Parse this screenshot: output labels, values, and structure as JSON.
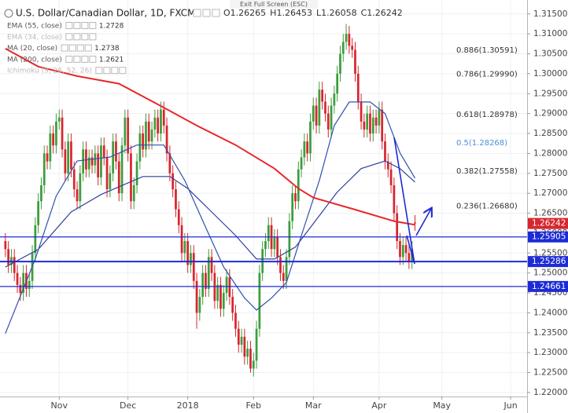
{
  "chart_data": {
    "type": "candlestick",
    "title": "U.S. Dollar/Canadian Dollar, 1D, FXCM",
    "banner": "Exit Full Screen (ESC)",
    "ohlc_labels": [
      "O",
      "H",
      "L",
      "C"
    ],
    "up_color": "#3d9d3d",
    "down_color": "#d7262e",
    "open": [
      1.258,
      1.256,
      1.252,
      1.254,
      1.25,
      1.247,
      1.245,
      1.25,
      1.246,
      1.248,
      1.255,
      1.262,
      1.268,
      1.272,
      1.28,
      1.278,
      1.285,
      1.282,
      1.288,
      1.289,
      1.281,
      1.275,
      1.283,
      1.276,
      1.271,
      1.268,
      1.275,
      1.281,
      1.276,
      1.279,
      1.277,
      1.28,
      1.274,
      1.282,
      1.279,
      1.271,
      1.275,
      1.283,
      1.278,
      1.27,
      1.282,
      1.289,
      1.28,
      1.268,
      1.272,
      1.278,
      1.285,
      1.281,
      1.288,
      1.283,
      1.286,
      1.289,
      1.285,
      1.291,
      1.287,
      1.28,
      1.275,
      1.271,
      1.266,
      1.262,
      1.255,
      1.258,
      1.252,
      1.255,
      1.248,
      1.24,
      1.244,
      1.25,
      1.246,
      1.254,
      1.25,
      1.243,
      1.247,
      1.241,
      1.245,
      1.249,
      1.244,
      1.24,
      1.236,
      1.232,
      1.234,
      1.229,
      1.231,
      1.226,
      1.228,
      1.236,
      1.25,
      1.256,
      1.258,
      1.262,
      1.256,
      1.259,
      1.254,
      1.25,
      1.248,
      1.254,
      1.263,
      1.27,
      1.268,
      1.276,
      1.279,
      1.283,
      1.28,
      1.288,
      1.292,
      1.287,
      1.296,
      1.293,
      1.29,
      1.286,
      1.292,
      1.295,
      1.3,
      1.305,
      1.308,
      1.31,
      1.307,
      1.306,
      1.3,
      1.293,
      1.288,
      1.286,
      1.29,
      1.285,
      1.289,
      1.287,
      1.291,
      1.283,
      1.278,
      1.276,
      1.272,
      1.265,
      1.258,
      1.254,
      1.257,
      1.255,
      1.253,
      1.26265
    ],
    "high": [
      1.26,
      1.258,
      1.256,
      1.256,
      1.252,
      1.249,
      1.252,
      1.252,
      1.25,
      1.257,
      1.264,
      1.27,
      1.274,
      1.282,
      1.282,
      1.287,
      1.287,
      1.29,
      1.291,
      1.291,
      1.283,
      1.285,
      1.285,
      1.278,
      1.273,
      1.277,
      1.283,
      1.283,
      1.281,
      1.281,
      1.282,
      1.282,
      1.284,
      1.284,
      1.281,
      1.277,
      1.285,
      1.285,
      1.28,
      1.284,
      1.291,
      1.291,
      1.282,
      1.274,
      1.28,
      1.287,
      1.287,
      1.29,
      1.29,
      1.288,
      1.291,
      1.291,
      1.293,
      1.293,
      1.289,
      1.282,
      1.277,
      1.273,
      1.268,
      1.264,
      1.26,
      1.26,
      1.257,
      1.257,
      1.25,
      1.246,
      1.252,
      1.252,
      1.256,
      1.256,
      1.252,
      1.249,
      1.249,
      1.247,
      1.251,
      1.251,
      1.246,
      1.242,
      1.238,
      1.236,
      1.236,
      1.233,
      1.233,
      1.23,
      1.238,
      1.252,
      1.258,
      1.26,
      1.264,
      1.264,
      1.261,
      1.261,
      1.256,
      1.252,
      1.256,
      1.265,
      1.272,
      1.272,
      1.278,
      1.281,
      1.285,
      1.285,
      1.29,
      1.294,
      1.294,
      1.298,
      1.298,
      1.295,
      1.292,
      1.294,
      1.297,
      1.302,
      1.307,
      1.31,
      1.3125,
      1.312,
      1.309,
      1.308,
      1.302,
      1.295,
      1.29,
      1.292,
      1.292,
      1.291,
      1.291,
      1.293,
      1.293,
      1.285,
      1.28,
      1.278,
      1.274,
      1.267,
      1.26,
      1.259,
      1.259,
      1.257,
      1.258,
      1.26453
    ],
    "low": [
      1.254,
      1.25,
      1.25,
      1.248,
      1.245,
      1.243,
      1.243,
      1.244,
      1.244,
      1.246,
      1.253,
      1.26,
      1.266,
      1.27,
      1.276,
      1.276,
      1.28,
      1.28,
      1.286,
      1.279,
      1.273,
      1.273,
      1.274,
      1.269,
      1.266,
      1.266,
      1.273,
      1.274,
      1.274,
      1.275,
      1.275,
      1.272,
      1.272,
      1.277,
      1.269,
      1.269,
      1.273,
      1.276,
      1.268,
      1.268,
      1.28,
      1.278,
      1.266,
      1.266,
      1.27,
      1.276,
      1.279,
      1.279,
      1.281,
      1.281,
      1.284,
      1.283,
      1.283,
      1.285,
      1.278,
      1.273,
      1.269,
      1.264,
      1.26,
      1.253,
      1.253,
      1.25,
      1.25,
      1.246,
      1.236,
      1.238,
      1.242,
      1.244,
      1.244,
      1.248,
      1.241,
      1.241,
      1.239,
      1.239,
      1.243,
      1.242,
      1.238,
      1.234,
      1.23,
      1.23,
      1.227,
      1.227,
      1.225,
      1.224,
      1.226,
      1.234,
      1.248,
      1.254,
      1.256,
      1.254,
      1.254,
      1.252,
      1.248,
      1.246,
      1.246,
      1.252,
      1.261,
      1.266,
      1.266,
      1.274,
      1.277,
      1.278,
      1.278,
      1.286,
      1.285,
      1.285,
      1.291,
      1.288,
      1.284,
      1.284,
      1.29,
      1.293,
      1.298,
      1.303,
      1.306,
      1.305,
      1.304,
      1.298,
      1.291,
      1.286,
      1.284,
      1.284,
      1.283,
      1.283,
      1.285,
      1.285,
      1.281,
      1.276,
      1.274,
      1.27,
      1.263,
      1.256,
      1.252,
      1.252,
      1.253,
      1.251,
      1.251,
      1.26058
    ],
    "close": [
      1.256,
      1.252,
      1.254,
      1.25,
      1.247,
      1.245,
      1.25,
      1.246,
      1.248,
      1.255,
      1.262,
      1.268,
      1.272,
      1.28,
      1.278,
      1.285,
      1.282,
      1.288,
      1.289,
      1.281,
      1.275,
      1.283,
      1.276,
      1.271,
      1.268,
      1.275,
      1.281,
      1.276,
      1.279,
      1.277,
      1.28,
      1.274,
      1.282,
      1.279,
      1.271,
      1.275,
      1.283,
      1.278,
      1.27,
      1.282,
      1.289,
      1.28,
      1.268,
      1.272,
      1.278,
      1.285,
      1.281,
      1.288,
      1.283,
      1.286,
      1.289,
      1.285,
      1.291,
      1.287,
      1.28,
      1.275,
      1.271,
      1.266,
      1.262,
      1.255,
      1.258,
      1.252,
      1.255,
      1.248,
      1.24,
      1.244,
      1.25,
      1.246,
      1.254,
      1.25,
      1.243,
      1.247,
      1.241,
      1.245,
      1.249,
      1.244,
      1.24,
      1.236,
      1.232,
      1.234,
      1.229,
      1.231,
      1.226,
      1.228,
      1.236,
      1.25,
      1.256,
      1.258,
      1.262,
      1.256,
      1.259,
      1.254,
      1.25,
      1.248,
      1.254,
      1.263,
      1.27,
      1.268,
      1.276,
      1.279,
      1.283,
      1.28,
      1.288,
      1.292,
      1.287,
      1.296,
      1.293,
      1.29,
      1.286,
      1.292,
      1.295,
      1.3,
      1.305,
      1.308,
      1.31,
      1.307,
      1.306,
      1.3,
      1.293,
      1.288,
      1.286,
      1.29,
      1.285,
      1.289,
      1.287,
      1.291,
      1.283,
      1.278,
      1.276,
      1.272,
      1.265,
      1.258,
      1.254,
      1.257,
      1.255,
      1.253,
      1.256,
      1.26242
    ],
    "series": [
      {
        "name": "EMA (55, close)",
        "color": "#2f3f9e",
        "x": [
          0,
          11,
          22,
          32,
          46,
          55,
          61,
          69,
          77,
          84,
          90,
          97,
          103,
          111,
          119,
          127,
          132,
          137
        ],
        "values": [
          1.2515,
          1.2559,
          1.2653,
          1.2697,
          1.2742,
          1.2742,
          1.2712,
          1.2653,
          1.2594,
          1.2535,
          1.2535,
          1.2565,
          1.2624,
          1.2703,
          1.2762,
          1.2781,
          1.2762,
          1.2728
        ]
      },
      {
        "name": "EMA (34, close)",
        "visible": false
      },
      {
        "name": "MA (20, close)",
        "color": "#3050b0",
        "x": [
          0,
          10,
          17,
          24,
          35,
          44,
          53,
          60,
          67,
          73,
          80,
          84,
          89,
          94,
          99,
          105,
          110,
          115,
          122,
          127,
          132,
          137
        ],
        "values": [
          1.2348,
          1.2535,
          1.2693,
          1.2781,
          1.2791,
          1.2821,
          1.2821,
          1.2732,
          1.2614,
          1.2515,
          1.2437,
          1.2407,
          1.2437,
          1.2476,
          1.2594,
          1.2732,
          1.287,
          1.2929,
          1.2929,
          1.29,
          1.2801,
          1.2738
        ]
      },
      {
        "name": "MA (200, close)",
        "color": "#e8272a",
        "x": [
          0,
          11,
          24,
          38,
          52,
          64,
          77,
          90,
          98,
          103,
          117,
          130,
          137
        ],
        "values": [
          1.3063,
          1.3018,
          1.2994,
          1.2975,
          1.2919,
          1.287,
          1.2821,
          1.2762,
          1.2712,
          1.2689,
          1.2659,
          1.263,
          1.2621
        ]
      },
      {
        "name": "Ichimoku (9, 26, 52, 26)",
        "visible": false
      }
    ],
    "levels": [
      1.25905,
      1.25286,
      1.24661
    ],
    "level_color": "#1d2bd6",
    "fib_levels": [
      {
        "value": 1.30591,
        "label": "0.886(1.30591)",
        "color": "#333333"
      },
      {
        "value": 1.2999,
        "label": "0.786(1.29990)",
        "color": "#333333"
      },
      {
        "value": 1.28978,
        "label": "0.618(1.28978)",
        "color": "#333333"
      },
      {
        "value": 1.28268,
        "label": "0.5(1.28268)",
        "color": "#4a90d9"
      },
      {
        "value": 1.27558,
        "label": "0.382(1.27558)",
        "color": "#333333"
      },
      {
        "value": 1.2668,
        "label": "0.236(1.26680)",
        "color": "#333333"
      }
    ],
    "xlim": [
      -1.8,
      174.5
    ],
    "xticks": [
      {
        "value": 18,
        "label": "Nov"
      },
      {
        "value": 41,
        "label": "Dec"
      },
      {
        "value": 61,
        "label": "2018"
      },
      {
        "value": 83,
        "label": "Feb"
      },
      {
        "value": 103,
        "label": "Mar"
      },
      {
        "value": 125,
        "label": "Apr"
      },
      {
        "value": 146,
        "label": "May"
      },
      {
        "value": 169,
        "label": "Jun"
      }
    ],
    "ylim": [
      1.219,
      1.3185
    ],
    "yticks": [
      {
        "value": 1.22,
        "label": "1.22000"
      },
      {
        "value": 1.225,
        "label": "1.22500"
      },
      {
        "value": 1.23,
        "label": "1.23000"
      },
      {
        "value": 1.235,
        "label": "1.23500"
      },
      {
        "value": 1.24,
        "label": "1.24000"
      },
      {
        "value": 1.245,
        "label": "1.24500"
      },
      {
        "value": 1.25,
        "label": "1.25000"
      },
      {
        "value": 1.255,
        "label": "1.25500"
      },
      {
        "value": 1.26,
        "label": "1.26000"
      },
      {
        "value": 1.265,
        "label": "1.26500"
      },
      {
        "value": 1.27,
        "label": "1.27000"
      },
      {
        "value": 1.275,
        "label": "1.27500"
      },
      {
        "value": 1.28,
        "label": "1.28000"
      },
      {
        "value": 1.285,
        "label": "1.28500"
      },
      {
        "value": 1.29,
        "label": "1.29000"
      },
      {
        "value": 1.295,
        "label": "1.29500"
      },
      {
        "value": 1.3,
        "label": "1.30000"
      },
      {
        "value": 1.305,
        "label": "1.30500"
      },
      {
        "value": 1.31,
        "label": "1.31000"
      },
      {
        "value": 1.315,
        "label": "1.31500"
      }
    ],
    "grid": true
  }
}
